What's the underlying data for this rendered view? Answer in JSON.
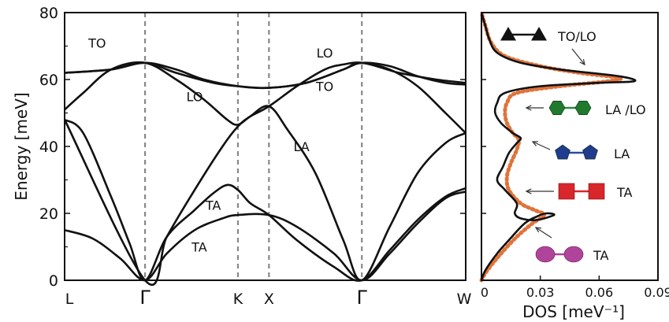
{
  "chart_data": [
    {
      "type": "line",
      "title": "",
      "ylabel": "Energy [meV]",
      "xlabel": "",
      "ylim": [
        0,
        80
      ],
      "yticks": [
        0,
        20,
        40,
        60,
        80
      ],
      "x_points": [
        {
          "label": "L",
          "pos": 0
        },
        {
          "label": "Γ",
          "pos": 0.866
        },
        {
          "label": "K",
          "pos": 1.866
        },
        {
          "label": "X",
          "pos": 2.2
        },
        {
          "label": "Γ",
          "pos": 3.2
        },
        {
          "label": "W",
          "pos": 4.318
        }
      ],
      "xlim": [
        0,
        4.318
      ],
      "vlines": [
        0.866,
        1.866,
        2.2,
        3.2
      ],
      "series": [
        {
          "points": [
            [
              0,
              15
            ],
            [
              0.3,
              12.5
            ],
            [
              0.6,
              6.5
            ],
            [
              0.866,
              0
            ],
            [
              1.1,
              8
            ],
            [
              1.4,
              15
            ],
            [
              1.7,
              18.5
            ],
            [
              1.866,
              19.5
            ],
            [
              2.2,
              19.5
            ],
            [
              2.5,
              16
            ],
            [
              2.9,
              8
            ],
            [
              3.2,
              0
            ],
            [
              3.5,
              8
            ],
            [
              3.8,
              17
            ],
            [
              4.1,
              24.5
            ],
            [
              4.318,
              26.5
            ]
          ]
        },
        {
          "points": [
            [
              0,
              48
            ],
            [
              0.2,
              44
            ],
            [
              0.5,
              25
            ],
            [
              0.7,
              11
            ],
            [
              0.866,
              0
            ],
            [
              1.1,
              13
            ],
            [
              1.4,
              21
            ],
            [
              1.6,
              26
            ],
            [
              1.75,
              28.5
            ],
            [
              1.866,
              27
            ],
            [
              2.0,
              23
            ],
            [
              2.2,
              19.5
            ],
            [
              2.5,
              12
            ],
            [
              2.9,
              4
            ],
            [
              3.2,
              0
            ],
            [
              3.5,
              9
            ],
            [
              3.8,
              18
            ],
            [
              4.1,
              25
            ],
            [
              4.318,
              27.5
            ]
          ]
        },
        {
          "points": [
            [
              0,
              48
            ],
            [
              0.866,
              0
            ],
            [
              1.1,
              13
            ],
            [
              1.4,
              27
            ],
            [
              1.7,
              40
            ],
            [
              1.866,
              46
            ],
            [
              2.0,
              49
            ],
            [
              2.2,
              52
            ],
            [
              2.4,
              45
            ],
            [
              2.7,
              32
            ],
            [
              3.0,
              12
            ],
            [
              3.2,
              0
            ],
            [
              3.5,
              16
            ],
            [
              3.8,
              32
            ],
            [
              4.1,
              41
            ],
            [
              4.318,
              44
            ]
          ]
        },
        {
          "points": [
            [
              0,
              51
            ],
            [
              0.2,
              56
            ],
            [
              0.5,
              63
            ],
            [
              0.866,
              65
            ],
            [
              1.2,
              60
            ],
            [
              1.5,
              54
            ],
            [
              1.75,
              48
            ],
            [
              1.866,
              46.5
            ],
            [
              2.0,
              49
            ],
            [
              2.2,
              52
            ],
            [
              2.5,
              58
            ],
            [
              2.8,
              63
            ],
            [
              3.0,
              64.5
            ],
            [
              3.2,
              65
            ],
            [
              3.5,
              63
            ],
            [
              3.8,
              58
            ],
            [
              4.1,
              50
            ],
            [
              4.318,
              44
            ]
          ]
        },
        {
          "points": [
            [
              0,
              62
            ],
            [
              0.5,
              63
            ],
            [
              0.866,
              65
            ],
            [
              1.2,
              63
            ],
            [
              1.5,
              60
            ],
            [
              1.866,
              58
            ],
            [
              2.2,
              57.5
            ],
            [
              2.6,
              59
            ],
            [
              3.0,
              63
            ],
            [
              3.2,
              65
            ],
            [
              3.5,
              64
            ],
            [
              3.8,
              61
            ],
            [
              4.1,
              59
            ],
            [
              4.318,
              58.5
            ]
          ]
        },
        {
          "points": [
            [
              0,
              62
            ],
            [
              0.5,
              63
            ],
            [
              0.866,
              65
            ],
            [
              1.2,
              62
            ],
            [
              1.6,
              59
            ],
            [
              1.866,
              58
            ],
            [
              2.2,
              57.5
            ],
            [
              2.6,
              59
            ],
            [
              3.0,
              63
            ],
            [
              3.2,
              65
            ],
            [
              3.6,
              62
            ],
            [
              4.0,
              60
            ],
            [
              4.318,
              59
            ]
          ]
        }
      ],
      "annotations": [
        {
          "text": "TO",
          "x": 0.35,
          "y": 71
        },
        {
          "text": "LO",
          "x": 1.4,
          "y": 55
        },
        {
          "text": "TA",
          "x": 1.6,
          "y": 22.5
        },
        {
          "text": "TA",
          "x": 1.45,
          "y": 10
        },
        {
          "text": "LA",
          "x": 2.55,
          "y": 40
        },
        {
          "text": "LO",
          "x": 2.8,
          "y": 68
        },
        {
          "text": "TO",
          "x": 2.8,
          "y": 58
        }
      ]
    },
    {
      "type": "line",
      "title": "",
      "xlabel": "DOS [meV⁻¹]",
      "xlim": [
        0,
        0.09
      ],
      "xticks": [
        "0",
        "0.03",
        "0.06",
        "0.09"
      ],
      "ylim": [
        0,
        80
      ],
      "series": [
        {
          "style": "solid",
          "color": "#111111",
          "points": [
            [
              0,
              0
            ],
            [
              0.002,
              3
            ],
            [
              0.008,
              8
            ],
            [
              0.014,
              12
            ],
            [
              0.022,
              17
            ],
            [
              0.028,
              19
            ],
            [
              0.033,
              20
            ],
            [
              0.037,
              19.5
            ],
            [
              0.028,
              18
            ],
            [
              0.02,
              18.5
            ],
            [
              0.017,
              20
            ],
            [
              0.018,
              23
            ],
            [
              0.012,
              27
            ],
            [
              0.008,
              30
            ],
            [
              0.011,
              34
            ],
            [
              0.014,
              38
            ],
            [
              0.018,
              41
            ],
            [
              0.02,
              42.5
            ],
            [
              0.016,
              44
            ],
            [
              0.01,
              47
            ],
            [
              0.007,
              50
            ],
            [
              0.008,
              53
            ],
            [
              0.012,
              56
            ],
            [
              0.03,
              58
            ],
            [
              0.06,
              59
            ],
            [
              0.078,
              59.5
            ],
            [
              0.07,
              61
            ],
            [
              0.04,
              63
            ],
            [
              0.02,
              65
            ],
            [
              0.008,
              68
            ],
            [
              0.004,
              72
            ],
            [
              0.002,
              76
            ],
            [
              0,
              80
            ]
          ]
        },
        {
          "style": "dotted",
          "color": "#e0733a",
          "points": [
            [
              0,
              0
            ],
            [
              0.003,
              3
            ],
            [
              0.01,
              8
            ],
            [
              0.018,
              13
            ],
            [
              0.026,
              17
            ],
            [
              0.032,
              19.5
            ],
            [
              0.027,
              21
            ],
            [
              0.02,
              23
            ],
            [
              0.014,
              27
            ],
            [
              0.013,
              31
            ],
            [
              0.015,
              35
            ],
            [
              0.018,
              39
            ],
            [
              0.019,
              42
            ],
            [
              0.016,
              44
            ],
            [
              0.013,
              47
            ],
            [
              0.012,
              50
            ],
            [
              0.013,
              53
            ],
            [
              0.018,
              56
            ],
            [
              0.04,
              58
            ],
            [
              0.065,
              59.5
            ],
            [
              0.07,
              60.5
            ],
            [
              0.05,
              62
            ],
            [
              0.03,
              64
            ],
            [
              0.012,
              67
            ],
            [
              0.005,
              71
            ],
            [
              0.002,
              76
            ],
            [
              0,
              80
            ]
          ]
        }
      ],
      "annotations": [
        {
          "text": "TO/LO",
          "marker": "triangle",
          "color": "#111111"
        },
        {
          "text": "LA /LO",
          "marker": "hexagon",
          "color": "#1f7a2e"
        },
        {
          "text": "LA",
          "marker": "pentagon",
          "color": "#1f3c8f"
        },
        {
          "text": "TA",
          "marker": "square",
          "color": "#d8262a"
        },
        {
          "text": "TA",
          "marker": "circle",
          "color": "#b0449a"
        }
      ]
    }
  ]
}
